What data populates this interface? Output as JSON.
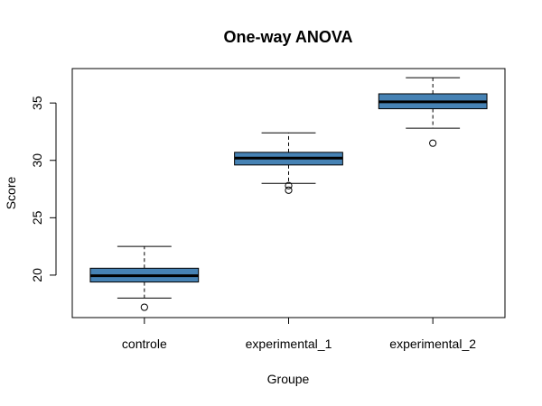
{
  "chart_data": {
    "type": "boxplot",
    "title": "One-way ANOVA",
    "xlabel": "Groupe",
    "ylabel": "Score",
    "ylim": [
      16.3,
      38.0
    ],
    "yticks": [
      20,
      25,
      30,
      35
    ],
    "categories": [
      "controle",
      "experimental_1",
      "experimental_2"
    ],
    "box_color": "#4682B4",
    "boxes": [
      {
        "name": "controle",
        "whisker_low": 18.0,
        "q1": 19.4,
        "median": 19.95,
        "q3": 20.6,
        "whisker_high": 22.5,
        "outliers": [
          17.2
        ]
      },
      {
        "name": "experimental_1",
        "whisker_low": 28.0,
        "q1": 29.6,
        "median": 30.2,
        "q3": 30.7,
        "whisker_high": 32.4,
        "outliers": [
          27.8,
          27.4
        ]
      },
      {
        "name": "experimental_2",
        "whisker_low": 32.8,
        "q1": 34.5,
        "median": 35.1,
        "q3": 35.8,
        "whisker_high": 37.2,
        "outliers": [
          31.5
        ]
      }
    ]
  }
}
